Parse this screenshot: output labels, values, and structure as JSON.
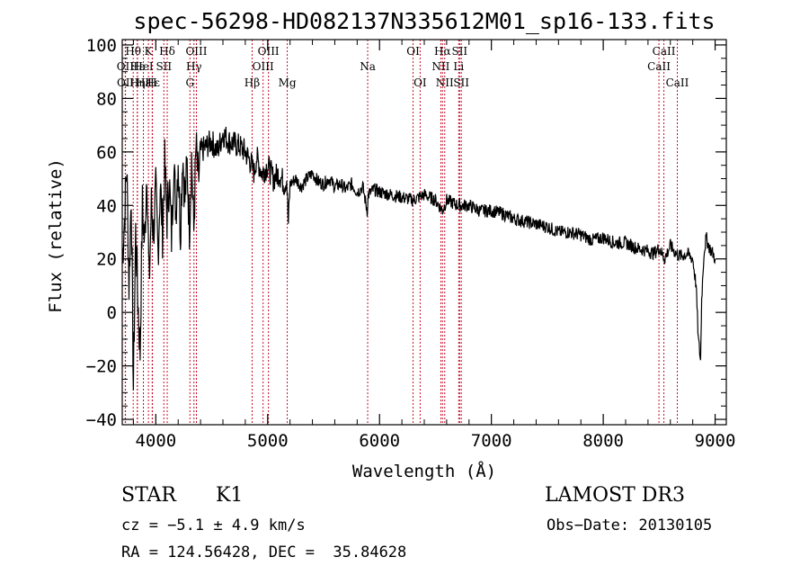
{
  "chart_data": {
    "type": "line",
    "title": "spec-56298-HD082137N335612M01_sp16-133.fits",
    "xlabel": "Wavelength (Å)",
    "ylabel": "Flux (relative)",
    "xlim": [
      3700,
      9100
    ],
    "ylim": [
      -42,
      102
    ],
    "xticks": [
      4000,
      5000,
      6000,
      7000,
      8000,
      9000
    ],
    "yticks": [
      -40,
      -20,
      0,
      20,
      40,
      60,
      80,
      100
    ],
    "series": [
      {
        "name": "flux",
        "x": [
          3700,
          3720,
          3740,
          3760,
          3780,
          3800,
          3820,
          3840,
          3860,
          3880,
          3900,
          3920,
          3940,
          3960,
          3980,
          4000,
          4020,
          4040,
          4060,
          4080,
          4100,
          4120,
          4140,
          4160,
          4180,
          4200,
          4220,
          4240,
          4260,
          4280,
          4300,
          4320,
          4340,
          4360,
          4380,
          4400,
          4450,
          4500,
          4550,
          4600,
          4650,
          4700,
          4750,
          4800,
          4850,
          4880,
          4900,
          4950,
          5000,
          5050,
          5100,
          5150,
          5170,
          5185,
          5200,
          5250,
          5300,
          5350,
          5400,
          5450,
          5500,
          5550,
          5600,
          5650,
          5700,
          5750,
          5800,
          5850,
          5890,
          5900,
          5950,
          6000,
          6100,
          6200,
          6300,
          6400,
          6500,
          6563,
          6600,
          6700,
          6800,
          6900,
          7000,
          7100,
          7200,
          7300,
          7400,
          7500,
          7600,
          7700,
          7800,
          7900,
          8000,
          8100,
          8200,
          8300,
          8400,
          8450,
          8500,
          8550,
          8600,
          8650,
          8700,
          8750,
          8800,
          8830,
          8850,
          8870,
          8880,
          8900,
          8920,
          8950,
          8980,
          9000
        ],
        "values": [
          20,
          35,
          55,
          10,
          45,
          -28,
          30,
          5,
          -15,
          40,
          25,
          55,
          10,
          40,
          30,
          45,
          22,
          48,
          30,
          55,
          35,
          50,
          28,
          56,
          38,
          58,
          30,
          60,
          42,
          55,
          32,
          58,
          30,
          62,
          48,
          60,
          62,
          64,
          60,
          67,
          64,
          63,
          62,
          60,
          56,
          52,
          58,
          52,
          55,
          50,
          52,
          48,
          50,
          33,
          48,
          50,
          47,
          50,
          52,
          49,
          48,
          50,
          47,
          48,
          46,
          48,
          45,
          47,
          38,
          44,
          46,
          45,
          44,
          43,
          42,
          44,
          42,
          38,
          42,
          40,
          40,
          38,
          38,
          37,
          35,
          34,
          33,
          32,
          30,
          30,
          29,
          27,
          28,
          26,
          26,
          24,
          23,
          22,
          24,
          20,
          25,
          22,
          21,
          22,
          20,
          10,
          -10,
          -18,
          5,
          22,
          28,
          24,
          22,
          20
        ]
      }
    ],
    "line_markers": [
      {
        "label": "Hθ",
        "x": 3798,
        "row": 0
      },
      {
        "label": "OII",
        "x": 3727,
        "row": 1
      },
      {
        "label": "OII",
        "x": 3729,
        "row": 2
      },
      {
        "label": "Hε",
        "x": 3835,
        "row": 1
      },
      {
        "label": "Hε",
        "x": 3889,
        "row": 2
      },
      {
        "label": "K",
        "x": 3934,
        "row": 0
      },
      {
        "label": "Hε",
        "x": 3970,
        "row": 2
      },
      {
        "label": "HeI",
        "x": 3889,
        "row": 1
      },
      {
        "label": "Hη",
        "x": 3835,
        "row": 2
      },
      {
        "label": "H",
        "x": 3968,
        "row": 2
      },
      {
        "label": "Hδ",
        "x": 4102,
        "row": 0
      },
      {
        "label": "SII",
        "x": 4072,
        "row": 1
      },
      {
        "label": "OIII",
        "x": 4363,
        "row": 0
      },
      {
        "label": "Hγ",
        "x": 4341,
        "row": 1
      },
      {
        "label": "G",
        "x": 4305,
        "row": 2
      },
      {
        "label": "Hβ",
        "x": 4861,
        "row": 2
      },
      {
        "label": "OIII",
        "x": 5007,
        "row": 0
      },
      {
        "label": "OIII",
        "x": 4959,
        "row": 1
      },
      {
        "label": "Mg",
        "x": 5175,
        "row": 2
      },
      {
        "label": "Na",
        "x": 5894,
        "row": 1
      },
      {
        "label": "OI",
        "x": 6300,
        "row": 0
      },
      {
        "label": "OI",
        "x": 6363,
        "row": 2
      },
      {
        "label": "Hα",
        "x": 6563,
        "row": 0
      },
      {
        "label": "NII",
        "x": 6548,
        "row": 1
      },
      {
        "label": "NII",
        "x": 6583,
        "row": 2
      },
      {
        "label": "SII",
        "x": 6716,
        "row": 0
      },
      {
        "label": "Li",
        "x": 6708,
        "row": 1
      },
      {
        "label": "SII",
        "x": 6731,
        "row": 2
      },
      {
        "label": "CaII",
        "x": 8542,
        "row": 0
      },
      {
        "label": "CaII",
        "x": 8498,
        "row": 1
      },
      {
        "label": "CaII",
        "x": 8662,
        "row": 2
      }
    ]
  },
  "info": {
    "class_label": "STAR",
    "subclass": "K1",
    "survey": "LAMOST DR3",
    "cz": "cz = −5.1 ± 4.9 km/s",
    "obs_date": "Obs−Date: 20130105",
    "coords": "RA = 124.56428, DEC =  35.84628"
  }
}
